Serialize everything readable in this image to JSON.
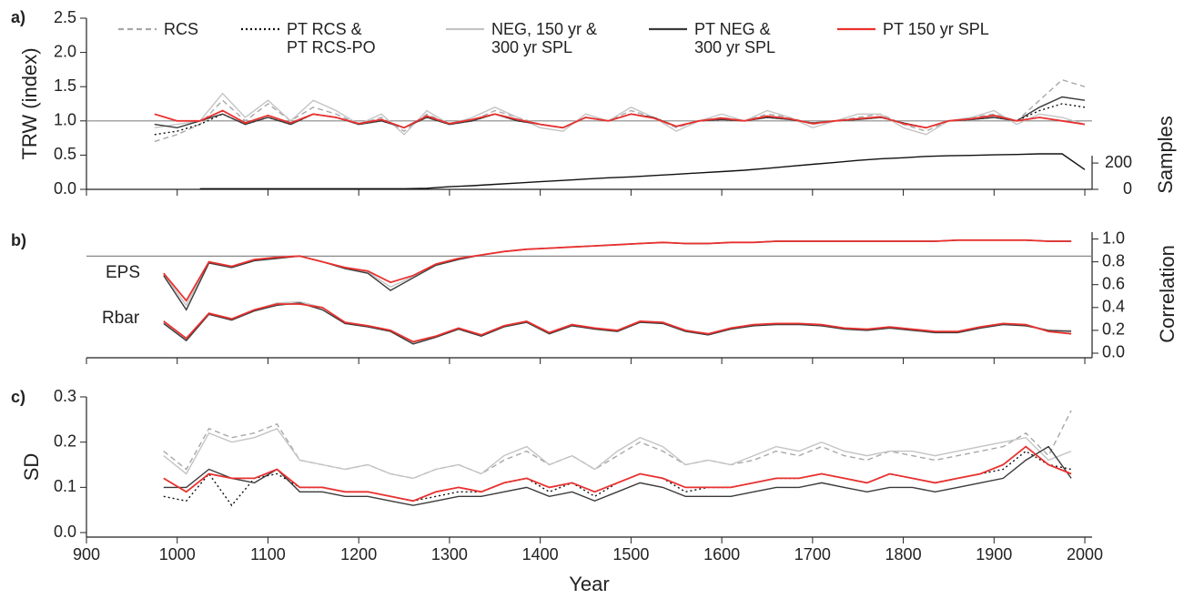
{
  "chart_data": [
    {
      "type": "line",
      "panel_label": "a)",
      "ylabel": "TRW (index)",
      "y2label": "Samples",
      "legend": "top",
      "xlim": [
        900,
        2008
      ],
      "xticks": [
        900,
        1000,
        1100,
        1200,
        1300,
        1400,
        1500,
        1600,
        1700,
        1800,
        1900,
        2000
      ],
      "xtick_labels": false,
      "ylim": [
        0,
        2.5
      ],
      "yticks": [
        {
          "value": 0,
          "label": "0.0"
        },
        0.5,
        {
          "value": 1,
          "label": "1.0"
        },
        1.5,
        {
          "value": 2,
          "label": "2.0"
        },
        2.5
      ],
      "y2lim": [
        0,
        1300
      ],
      "y2ticks": [
        0,
        200
      ],
      "hline": 1,
      "hline_color": "#888",
      "x": [
        975,
        1000,
        1025,
        1050,
        1075,
        1100,
        1125,
        1150,
        1175,
        1200,
        1225,
        1250,
        1275,
        1300,
        1325,
        1350,
        1375,
        1400,
        1425,
        1450,
        1475,
        1500,
        1525,
        1550,
        1575,
        1600,
        1625,
        1650,
        1675,
        1700,
        1725,
        1750,
        1775,
        1800,
        1825,
        1850,
        1875,
        1900,
        1925,
        1950,
        1975,
        2000
      ],
      "series": [
        {
          "name": "RCS",
          "color": "#a8a8a8",
          "dash": "dashed",
          "values": [
            0.7,
            0.8,
            0.95,
            1.3,
            1.0,
            1.25,
            1.0,
            1.2,
            1.1,
            0.95,
            1.05,
            0.85,
            1.1,
            0.95,
            1.0,
            1.15,
            1.05,
            0.95,
            0.9,
            1.05,
            1.0,
            1.15,
            1.05,
            0.9,
            1.0,
            1.05,
            1.0,
            1.1,
            1.05,
            0.95,
            1.0,
            1.05,
            1.1,
            0.95,
            0.85,
            1.0,
            1.05,
            1.1,
            1.0,
            1.3,
            1.6,
            1.5
          ]
        },
        {
          "name": "PT RCS &\nPT RCS-PO",
          "color": "#111111",
          "dash": "dotted",
          "values": [
            0.8,
            0.85,
            0.95,
            1.1,
            0.95,
            1.05,
            0.95,
            1.1,
            1.05,
            0.95,
            1.0,
            0.9,
            1.05,
            0.95,
            1.0,
            1.1,
            1.0,
            0.95,
            0.9,
            1.05,
            1.0,
            1.1,
            1.05,
            0.92,
            1.0,
            1.02,
            1.0,
            1.05,
            1.02,
            0.97,
            1.0,
            1.02,
            1.05,
            0.97,
            0.9,
            1.0,
            1.02,
            1.05,
            1.0,
            1.15,
            1.25,
            1.2
          ]
        },
        {
          "name": "NEG, 150 yr &\n300 yr SPL",
          "color": "#c4c4c4",
          "dash": "solid",
          "values": [
            0.9,
            0.95,
            1.0,
            1.4,
            1.05,
            1.3,
            1.0,
            1.3,
            1.15,
            0.95,
            1.1,
            0.8,
            1.15,
            0.95,
            1.05,
            1.2,
            1.05,
            0.9,
            0.85,
            1.1,
            1.0,
            1.2,
            1.05,
            0.85,
            1.0,
            1.1,
            1.0,
            1.15,
            1.05,
            0.9,
            1.0,
            1.1,
            1.1,
            0.9,
            0.8,
            1.0,
            1.05,
            1.15,
            0.95,
            1.1,
            1.05,
            0.95
          ]
        },
        {
          "name": "PT NEG &\n300 yr SPL",
          "color": "#3a3a3a",
          "dash": "solid",
          "values": [
            0.95,
            0.9,
            1.0,
            1.1,
            0.95,
            1.05,
            0.95,
            1.1,
            1.05,
            0.95,
            1.0,
            0.9,
            1.05,
            0.95,
            1.0,
            1.1,
            1.0,
            0.95,
            0.9,
            1.05,
            1.0,
            1.1,
            1.05,
            0.92,
            1.0,
            1.02,
            1.0,
            1.05,
            1.02,
            0.97,
            1.0,
            1.02,
            1.05,
            0.97,
            0.9,
            1.0,
            1.02,
            1.05,
            1.0,
            1.2,
            1.35,
            1.3
          ]
        },
        {
          "name": "PT 150 yr SPL",
          "color": "#e8312f",
          "dash": "solid",
          "values": [
            1.1,
            1.0,
            1.0,
            1.15,
            0.97,
            1.08,
            0.97,
            1.1,
            1.05,
            0.96,
            1.02,
            0.9,
            1.07,
            0.96,
            1.02,
            1.1,
            1.02,
            0.95,
            0.9,
            1.05,
            1.0,
            1.1,
            1.04,
            0.92,
            1.0,
            1.04,
            1.0,
            1.07,
            1.03,
            0.96,
            1.0,
            1.03,
            1.06,
            0.96,
            0.9,
            1.0,
            1.03,
            1.08,
            1.0,
            1.05,
            1.0,
            0.95
          ]
        },
        {
          "axis": "y2",
          "color": "#111111",
          "dash": "solid",
          "values": [
            null,
            null,
            5,
            5,
            5,
            5,
            5,
            5,
            5,
            5,
            5,
            5,
            8,
            20,
            28,
            38,
            48,
            58,
            68,
            78,
            88,
            95,
            105,
            115,
            125,
            135,
            145,
            160,
            175,
            190,
            205,
            220,
            232,
            240,
            250,
            255,
            258,
            262,
            265,
            270,
            270,
            150
          ]
        }
      ]
    },
    {
      "type": "line",
      "panel_label": "b)",
      "ylabel": "Correlation",
      "y_axis_side": "right",
      "annotations": [
        "EPS",
        "Rbar"
      ],
      "xlim": [
        900,
        2008
      ],
      "xticks": [
        900,
        1000,
        1100,
        1200,
        1300,
        1400,
        1500,
        1600,
        1700,
        1800,
        1900,
        2000
      ],
      "xtick_labels": false,
      "ylim": [
        -0.04,
        1.06
      ],
      "yticks": [
        {
          "value": 0,
          "label": "0.0"
        },
        0.2,
        0.4,
        0.6,
        0.8,
        {
          "value": 1,
          "label": "1.0"
        }
      ],
      "hline": 0.85,
      "hline_color": "#888",
      "x": [
        985,
        1010,
        1035,
        1060,
        1085,
        1110,
        1135,
        1160,
        1185,
        1210,
        1235,
        1260,
        1285,
        1310,
        1335,
        1360,
        1385,
        1410,
        1435,
        1460,
        1485,
        1510,
        1535,
        1560,
        1585,
        1610,
        1635,
        1660,
        1685,
        1710,
        1735,
        1760,
        1785,
        1810,
        1835,
        1860,
        1885,
        1910,
        1935,
        1960,
        1985
      ],
      "series": [
        {
          "color": "#c4c4c4",
          "dash": "solid",
          "values": [
            0.69,
            0.42,
            0.8,
            0.76,
            0.82,
            0.84,
            0.85,
            0.8,
            0.75,
            0.71,
            0.58,
            0.67,
            0.78,
            0.83,
            0.86,
            0.89,
            0.91,
            0.92,
            0.93,
            0.94,
            0.95,
            0.96,
            0.97,
            0.96,
            0.96,
            0.97,
            0.97,
            0.98,
            0.98,
            0.98,
            0.98,
            0.98,
            0.98,
            0.98,
            0.98,
            0.99,
            0.99,
            0.99,
            0.99,
            0.98,
            0.98
          ]
        },
        {
          "color": "#3a3a3a",
          "dash": "solid",
          "values": [
            0.68,
            0.38,
            0.79,
            0.75,
            0.81,
            0.83,
            0.85,
            0.8,
            0.74,
            0.7,
            0.55,
            0.66,
            0.77,
            0.82,
            0.86,
            0.89,
            0.91,
            0.92,
            0.93,
            0.94,
            0.95,
            0.96,
            0.97,
            0.96,
            0.96,
            0.97,
            0.97,
            0.98,
            0.98,
            0.98,
            0.98,
            0.98,
            0.98,
            0.98,
            0.98,
            0.99,
            0.99,
            0.99,
            0.99,
            0.98,
            0.98
          ]
        },
        {
          "color": "#e8312f",
          "dash": "solid",
          "values": [
            0.7,
            0.46,
            0.8,
            0.76,
            0.82,
            0.84,
            0.85,
            0.8,
            0.75,
            0.72,
            0.62,
            0.68,
            0.78,
            0.83,
            0.86,
            0.89,
            0.91,
            0.92,
            0.93,
            0.94,
            0.95,
            0.96,
            0.97,
            0.96,
            0.96,
            0.97,
            0.97,
            0.98,
            0.98,
            0.98,
            0.98,
            0.98,
            0.98,
            0.98,
            0.98,
            0.99,
            0.99,
            0.99,
            0.99,
            0.98,
            0.98
          ]
        },
        {
          "color": "#c4c4c4",
          "dash": "solid",
          "values": [
            0.27,
            0.12,
            0.35,
            0.3,
            0.38,
            0.44,
            0.45,
            0.4,
            0.27,
            0.24,
            0.2,
            0.09,
            0.15,
            0.22,
            0.16,
            0.24,
            0.28,
            0.18,
            0.25,
            0.22,
            0.2,
            0.28,
            0.27,
            0.2,
            0.17,
            0.22,
            0.25,
            0.26,
            0.26,
            0.25,
            0.22,
            0.21,
            0.23,
            0.21,
            0.19,
            0.19,
            0.23,
            0.26,
            0.25,
            0.2,
            0.2
          ]
        },
        {
          "color": "#3a3a3a",
          "dash": "solid",
          "values": [
            0.26,
            0.11,
            0.34,
            0.29,
            0.37,
            0.42,
            0.44,
            0.38,
            0.26,
            0.23,
            0.19,
            0.08,
            0.14,
            0.21,
            0.15,
            0.23,
            0.27,
            0.17,
            0.24,
            0.21,
            0.19,
            0.27,
            0.26,
            0.19,
            0.16,
            0.21,
            0.24,
            0.25,
            0.25,
            0.24,
            0.21,
            0.2,
            0.22,
            0.2,
            0.18,
            0.18,
            0.22,
            0.25,
            0.24,
            0.2,
            0.19
          ]
        },
        {
          "color": "#e8312f",
          "dash": "solid",
          "values": [
            0.28,
            0.13,
            0.35,
            0.3,
            0.38,
            0.43,
            0.43,
            0.4,
            0.27,
            0.24,
            0.2,
            0.1,
            0.15,
            0.22,
            0.16,
            0.24,
            0.28,
            0.18,
            0.25,
            0.22,
            0.2,
            0.28,
            0.27,
            0.2,
            0.17,
            0.22,
            0.25,
            0.26,
            0.26,
            0.25,
            0.22,
            0.21,
            0.23,
            0.21,
            0.19,
            0.19,
            0.23,
            0.26,
            0.25,
            0.19,
            0.17
          ]
        }
      ]
    },
    {
      "type": "line",
      "panel_label": "c)",
      "ylabel": "SD",
      "xlabel": "Year",
      "xlim": [
        900,
        2008
      ],
      "xticks": [
        900,
        1000,
        1100,
        1200,
        1300,
        1400,
        1500,
        1600,
        1700,
        1800,
        1900,
        2000
      ],
      "xtick_labels": true,
      "ylim": [
        -0.01,
        0.3
      ],
      "yticks": [
        {
          "value": 0,
          "label": "0.0"
        },
        0.1,
        0.2,
        0.3
      ],
      "x": [
        985,
        1010,
        1035,
        1060,
        1085,
        1110,
        1135,
        1160,
        1185,
        1210,
        1235,
        1260,
        1285,
        1310,
        1335,
        1360,
        1385,
        1410,
        1435,
        1460,
        1485,
        1510,
        1535,
        1560,
        1585,
        1610,
        1635,
        1660,
        1685,
        1710,
        1735,
        1760,
        1785,
        1810,
        1835,
        1860,
        1885,
        1910,
        1935,
        1960,
        1985
      ],
      "series": [
        {
          "color": "#a8a8a8",
          "dash": "dashed",
          "values": [
            0.18,
            0.14,
            0.23,
            0.21,
            0.22,
            0.24,
            0.16,
            0.15,
            0.14,
            0.15,
            0.13,
            0.12,
            0.14,
            0.15,
            0.13,
            0.16,
            0.18,
            0.15,
            0.17,
            0.14,
            0.17,
            0.2,
            0.18,
            0.15,
            0.16,
            0.15,
            0.16,
            0.18,
            0.17,
            0.19,
            0.17,
            0.16,
            0.18,
            0.17,
            0.16,
            0.17,
            0.18,
            0.19,
            0.22,
            0.17,
            0.27
          ]
        },
        {
          "color": "#111111",
          "dash": "dotted",
          "values": [
            0.08,
            0.07,
            0.13,
            0.06,
            0.12,
            0.13,
            0.1,
            0.1,
            0.09,
            0.09,
            0.08,
            0.07,
            0.08,
            0.09,
            0.09,
            0.11,
            0.12,
            0.09,
            0.11,
            0.08,
            0.11,
            0.13,
            0.12,
            0.09,
            0.1,
            0.1,
            0.11,
            0.12,
            0.12,
            0.13,
            0.12,
            0.11,
            0.13,
            0.12,
            0.11,
            0.12,
            0.13,
            0.14,
            0.18,
            0.15,
            0.14
          ]
        },
        {
          "color": "#c4c4c4",
          "dash": "solid",
          "values": [
            0.17,
            0.13,
            0.22,
            0.2,
            0.21,
            0.23,
            0.16,
            0.15,
            0.14,
            0.15,
            0.13,
            0.12,
            0.14,
            0.15,
            0.13,
            0.17,
            0.19,
            0.15,
            0.17,
            0.14,
            0.18,
            0.21,
            0.19,
            0.15,
            0.16,
            0.15,
            0.17,
            0.19,
            0.18,
            0.2,
            0.18,
            0.17,
            0.18,
            0.18,
            0.17,
            0.18,
            0.19,
            0.2,
            0.21,
            0.16,
            0.18
          ]
        },
        {
          "color": "#3a3a3a",
          "dash": "solid",
          "values": [
            0.1,
            0.1,
            0.14,
            0.12,
            0.11,
            0.14,
            0.09,
            0.09,
            0.08,
            0.08,
            0.07,
            0.06,
            0.07,
            0.08,
            0.08,
            0.09,
            0.1,
            0.08,
            0.09,
            0.07,
            0.09,
            0.11,
            0.1,
            0.08,
            0.08,
            0.08,
            0.09,
            0.1,
            0.1,
            0.11,
            0.1,
            0.09,
            0.1,
            0.1,
            0.09,
            0.1,
            0.11,
            0.12,
            0.16,
            0.19,
            0.12
          ]
        },
        {
          "color": "#e8312f",
          "dash": "solid",
          "values": [
            0.12,
            0.09,
            0.13,
            0.12,
            0.12,
            0.14,
            0.1,
            0.1,
            0.09,
            0.09,
            0.08,
            0.07,
            0.09,
            0.1,
            0.09,
            0.11,
            0.12,
            0.1,
            0.11,
            0.09,
            0.11,
            0.13,
            0.12,
            0.1,
            0.1,
            0.1,
            0.11,
            0.12,
            0.12,
            0.13,
            0.12,
            0.11,
            0.13,
            0.12,
            0.11,
            0.12,
            0.13,
            0.15,
            0.19,
            0.15,
            0.13
          ]
        }
      ]
    }
  ]
}
